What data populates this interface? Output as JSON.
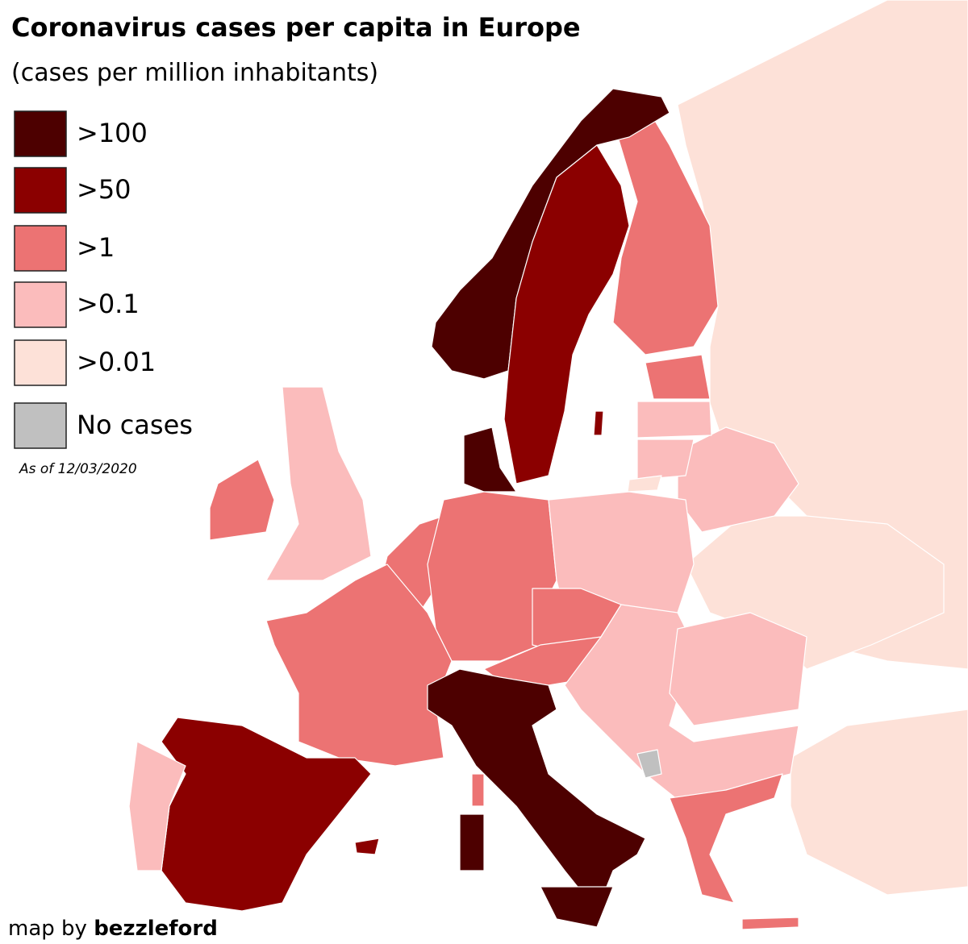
{
  "title": "Coronavirus cases per capita in Europe",
  "subtitle": "(cases per million inhabitants)",
  "legend": [
    {
      "label": ">100",
      "color": "#4d0000"
    },
    {
      "label": ">50",
      "color": "#8b0000"
    },
    {
      "label": ">1",
      "color": "#ec7373"
    },
    {
      "label": ">0.1",
      "color": "#fbbcbc"
    },
    {
      "label": ">0.01",
      "color": "#fde1d8"
    },
    {
      "label": "No cases",
      "color": "#c0c0c0"
    }
  ],
  "note": "As of 12/03/2020",
  "credit": {
    "prefix": "map by",
    "author": "bezzleford"
  }
}
